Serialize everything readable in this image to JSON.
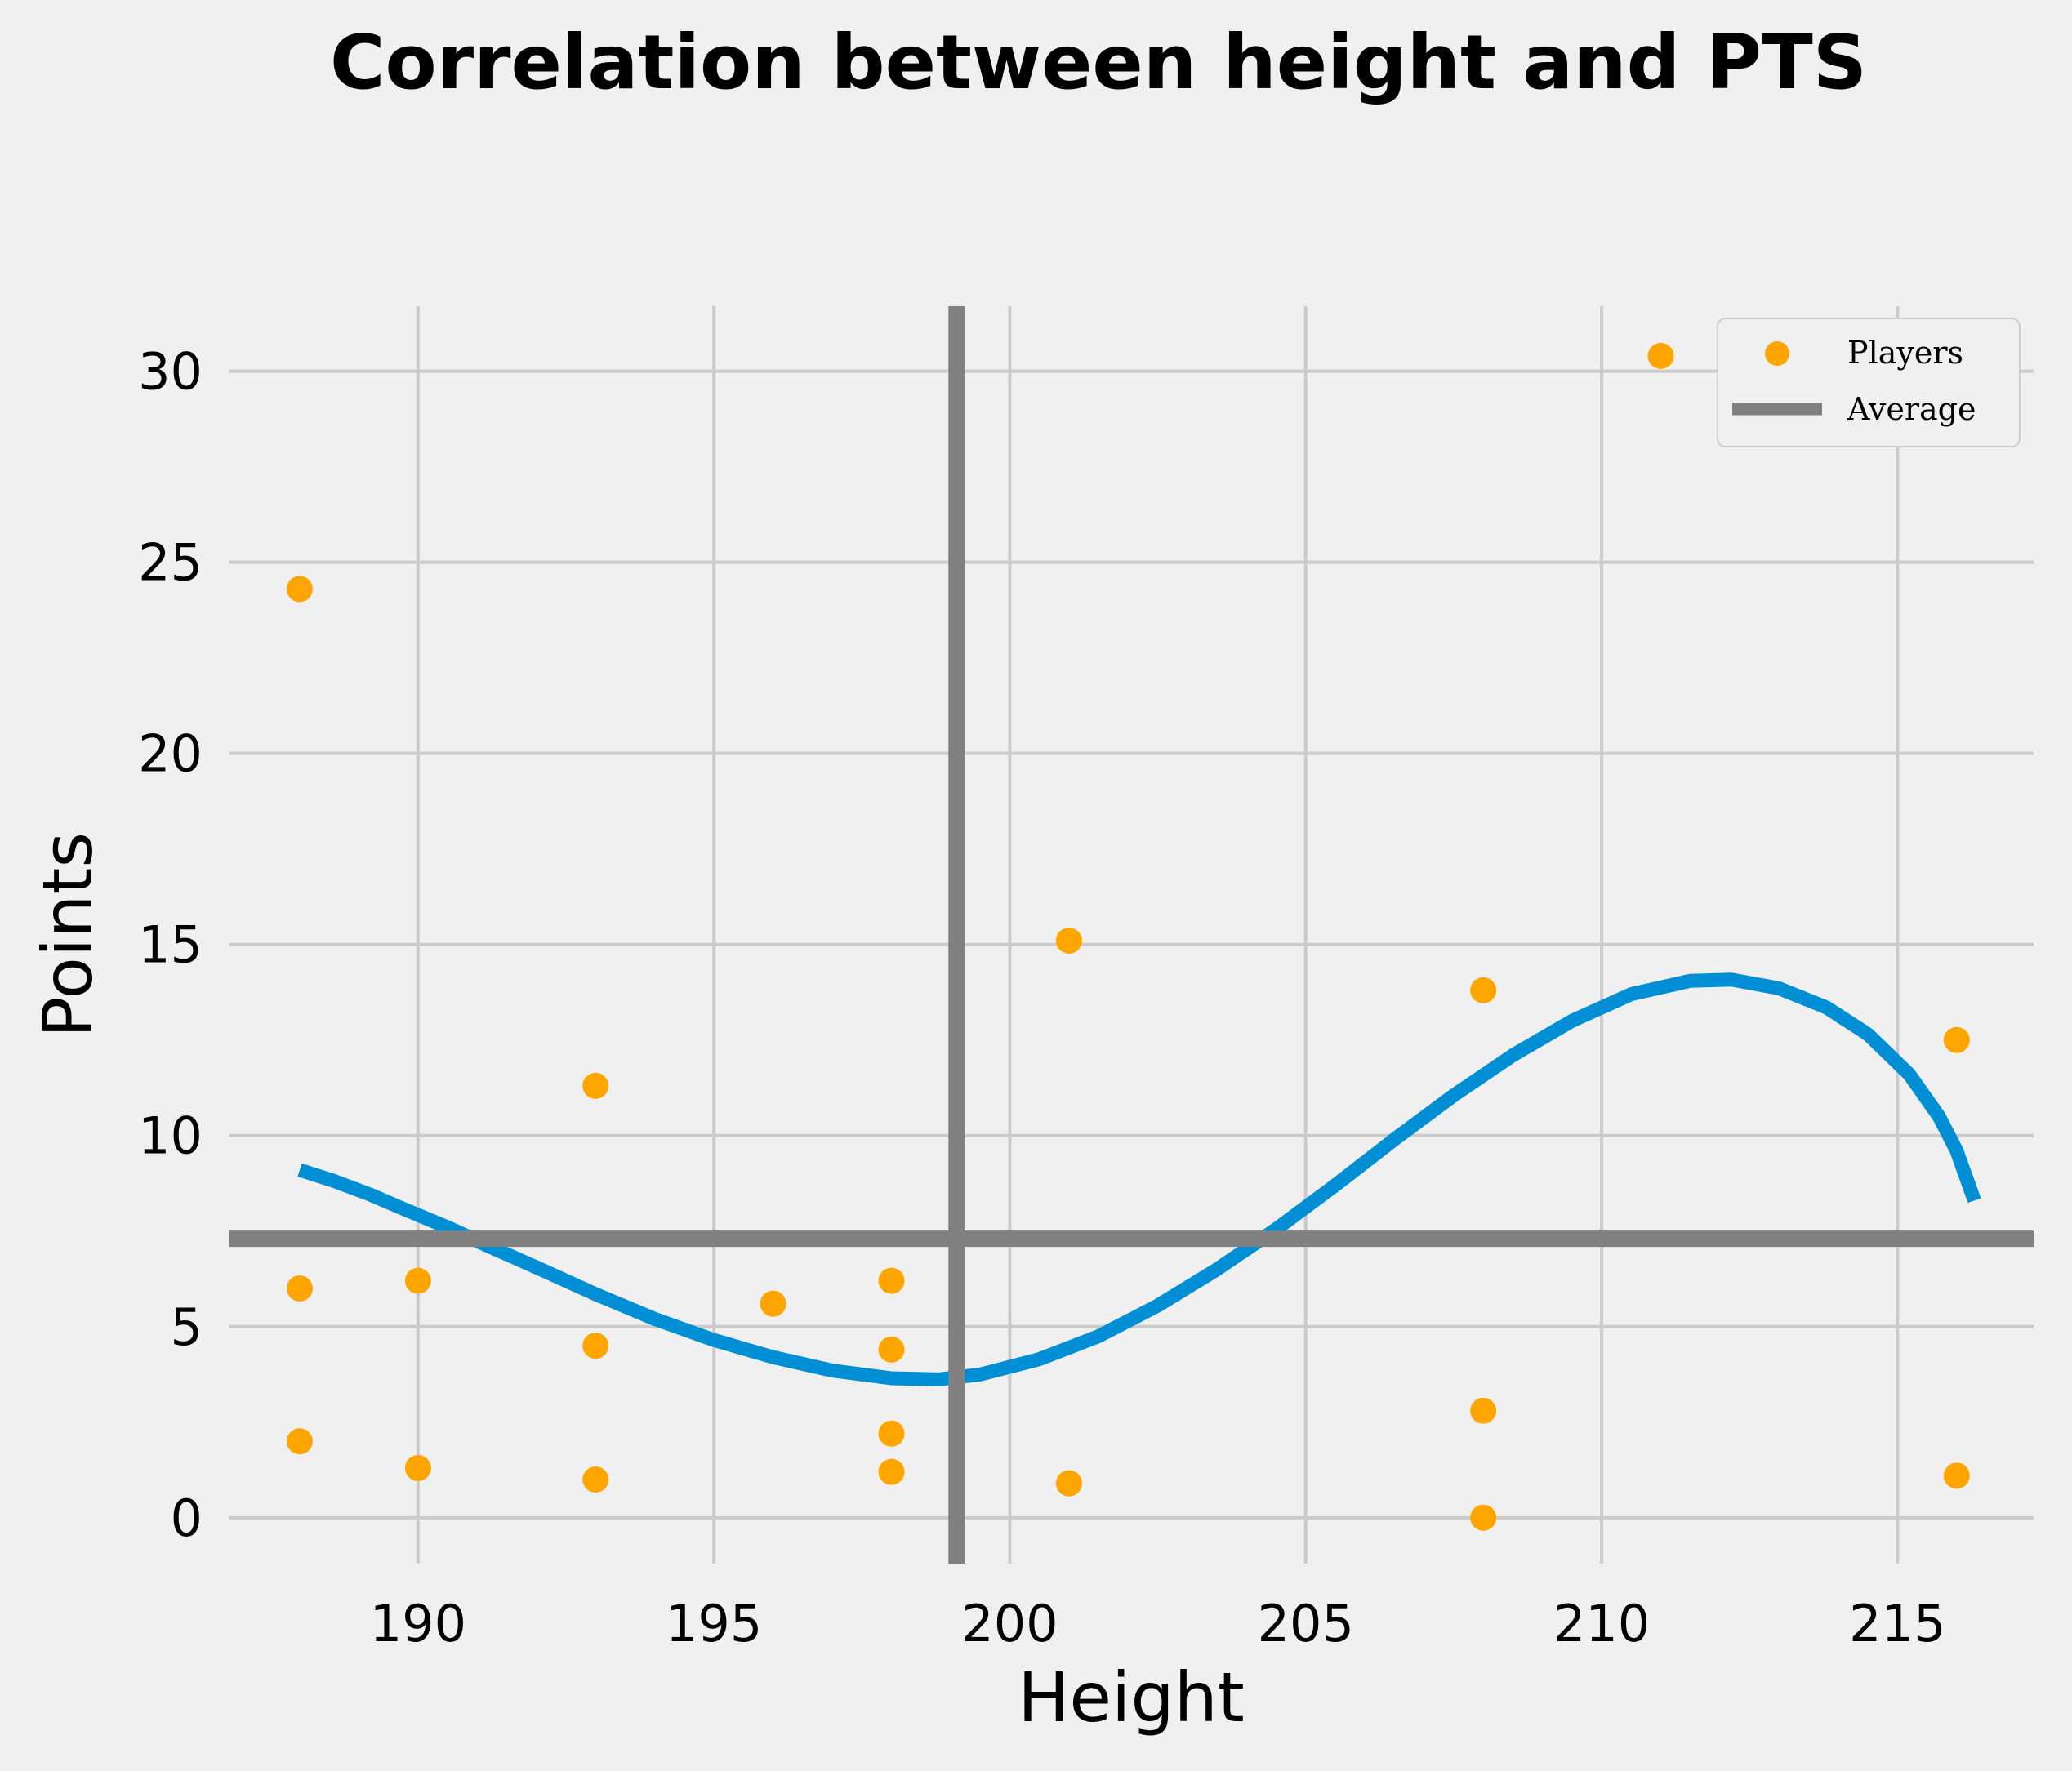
{
  "chart_data": {
    "type": "scatter",
    "title": "Correlation between height and PTS",
    "xlabel": "Height",
    "ylabel": "Points",
    "xlim": [
      186.8,
      217.3
    ],
    "ylim": [
      -1.2,
      31.7
    ],
    "xticks": [
      190,
      195,
      200,
      205,
      210,
      215
    ],
    "yticks": [
      0,
      5,
      10,
      15,
      20,
      25,
      30
    ],
    "grid": true,
    "legend_position": "top-right",
    "colors": {
      "background": "#f0f0f0",
      "grid": "#cbcbcb",
      "points": "#ffa500",
      "average": "#808080",
      "trend": "#008fd5"
    },
    "series": [
      {
        "name": "Players",
        "kind": "scatter",
        "points": [
          [
            188,
            24.3
          ],
          [
            188,
            6.0
          ],
          [
            188,
            2.0
          ],
          [
            190,
            6.2
          ],
          [
            190,
            1.3
          ],
          [
            193,
            11.3
          ],
          [
            193,
            4.5
          ],
          [
            193,
            1.0
          ],
          [
            196,
            5.6
          ],
          [
            198,
            6.2
          ],
          [
            198,
            4.4
          ],
          [
            198,
            2.2
          ],
          [
            198,
            1.2
          ],
          [
            201,
            15.1
          ],
          [
            201,
            0.9
          ],
          [
            208,
            13.8
          ],
          [
            208,
            2.8
          ],
          [
            208,
            0.0
          ],
          [
            211,
            30.4
          ],
          [
            216,
            12.5
          ],
          [
            216,
            1.1
          ]
        ]
      },
      {
        "name": "Average",
        "kind": "crosshair",
        "x": 199.1,
        "y": 7.3
      },
      {
        "kind": "trend",
        "points": [
          [
            188.0,
            9.1
          ],
          [
            188.6,
            8.8
          ],
          [
            189.2,
            8.45
          ],
          [
            189.8,
            8.05
          ],
          [
            190.5,
            7.6
          ],
          [
            191.2,
            7.1
          ],
          [
            192.0,
            6.55
          ],
          [
            193.0,
            5.85
          ],
          [
            194.0,
            5.2
          ],
          [
            195.0,
            4.65
          ],
          [
            196.0,
            4.2
          ],
          [
            197.0,
            3.85
          ],
          [
            198.0,
            3.65
          ],
          [
            198.8,
            3.62
          ],
          [
            199.5,
            3.75
          ],
          [
            200.5,
            4.15
          ],
          [
            201.5,
            4.75
          ],
          [
            202.5,
            5.55
          ],
          [
            203.5,
            6.5
          ],
          [
            204.5,
            7.55
          ],
          [
            205.5,
            8.7
          ],
          [
            206.5,
            9.9
          ],
          [
            207.5,
            11.05
          ],
          [
            208.5,
            12.1
          ],
          [
            209.5,
            13.0
          ],
          [
            210.5,
            13.7
          ],
          [
            211.5,
            14.05
          ],
          [
            212.2,
            14.08
          ],
          [
            213.0,
            13.85
          ],
          [
            213.8,
            13.35
          ],
          [
            214.5,
            12.65
          ],
          [
            215.2,
            11.6
          ],
          [
            215.7,
            10.5
          ],
          [
            216.0,
            9.6
          ],
          [
            216.3,
            8.3
          ]
        ]
      }
    ]
  }
}
